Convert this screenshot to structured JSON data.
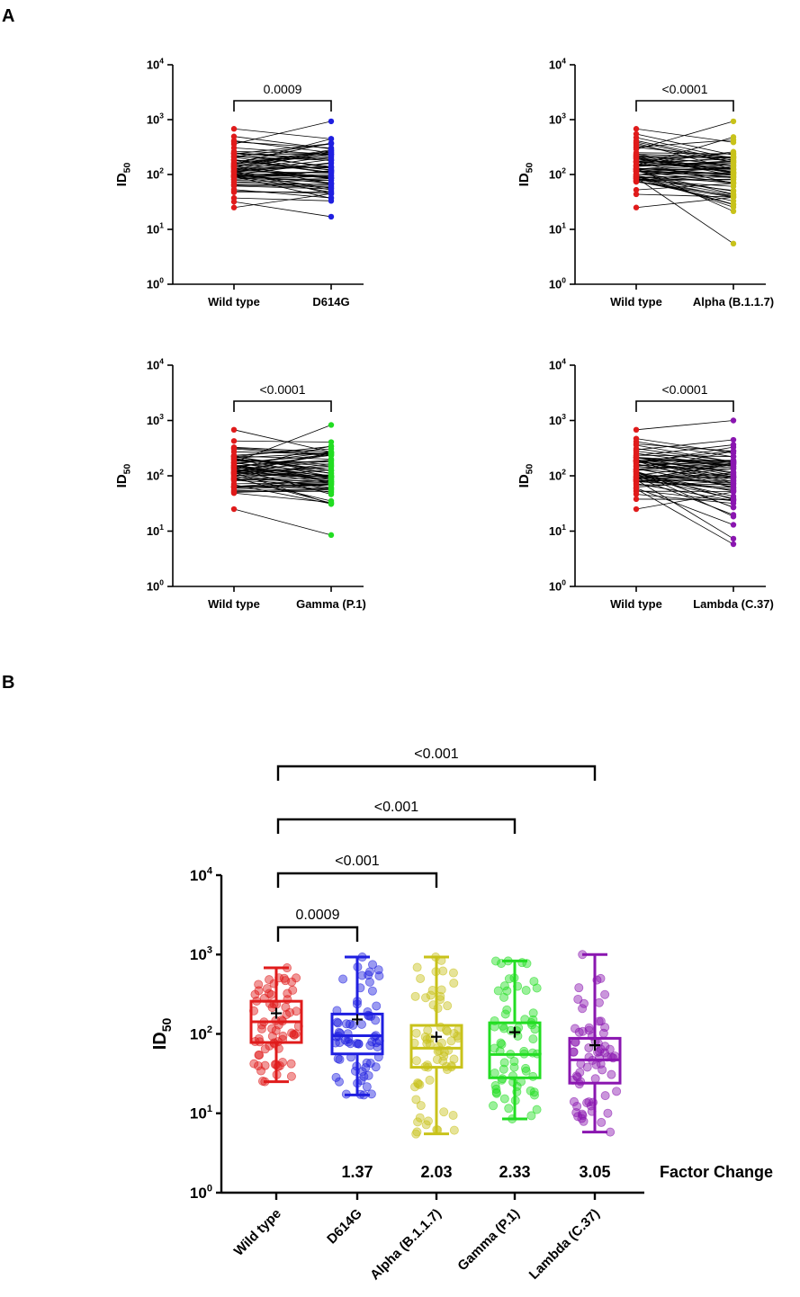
{
  "figure": {
    "panel_a_label": "A",
    "panel_b_label": "B"
  },
  "colors": {
    "wild_type": "#e01b1b",
    "d614g": "#1f1fe0",
    "alpha": "#c8c21a",
    "gamma": "#22dd22",
    "lambda": "#8a16b0",
    "pair_line": "#000000"
  },
  "chart_data": [
    {
      "panel": "A1",
      "type": "line",
      "subtype": "paired-dot",
      "ylabel_main": "ID",
      "ylabel_sub": "50",
      "y_scale": "log10",
      "ylim": [
        1,
        10000
      ],
      "y_ticks": [
        {
          "base": "10",
          "exp": "0"
        },
        {
          "base": "10",
          "exp": "1"
        },
        {
          "base": "10",
          "exp": "2"
        },
        {
          "base": "10",
          "exp": "3"
        },
        {
          "base": "10",
          "exp": "4"
        }
      ],
      "categories": [
        "Wild type",
        "D614G"
      ],
      "p_value": "0.0009",
      "series": [
        {
          "category": "Wild type",
          "color_key": "wild_type",
          "min": 25,
          "max": 680
        },
        {
          "category": "D614G",
          "color_key": "d614g",
          "min": 17,
          "max": 930
        }
      ],
      "pair_count": 70
    },
    {
      "panel": "A2",
      "type": "line",
      "subtype": "paired-dot",
      "ylabel_main": "ID",
      "ylabel_sub": "50",
      "y_scale": "log10",
      "ylim": [
        1,
        10000
      ],
      "y_ticks": [
        {
          "base": "10",
          "exp": "0"
        },
        {
          "base": "10",
          "exp": "1"
        },
        {
          "base": "10",
          "exp": "2"
        },
        {
          "base": "10",
          "exp": "3"
        },
        {
          "base": "10",
          "exp": "4"
        }
      ],
      "categories": [
        "Wild type",
        "Alpha (B.1.1.7)"
      ],
      "p_value": "<0.0001",
      "series": [
        {
          "category": "Wild type",
          "color_key": "wild_type",
          "min": 25,
          "max": 680
        },
        {
          "category": "Alpha (B.1.1.7)",
          "color_key": "alpha",
          "min": 5.5,
          "max": 930
        }
      ],
      "pair_count": 70
    },
    {
      "panel": "A3",
      "type": "line",
      "subtype": "paired-dot",
      "ylabel_main": "ID",
      "ylabel_sub": "50",
      "y_scale": "log10",
      "ylim": [
        1,
        10000
      ],
      "y_ticks": [
        {
          "base": "10",
          "exp": "0"
        },
        {
          "base": "10",
          "exp": "1"
        },
        {
          "base": "10",
          "exp": "2"
        },
        {
          "base": "10",
          "exp": "3"
        },
        {
          "base": "10",
          "exp": "4"
        }
      ],
      "categories": [
        "Wild type",
        "Gamma (P.1)"
      ],
      "p_value": "<0.0001",
      "series": [
        {
          "category": "Wild type",
          "color_key": "wild_type",
          "min": 25,
          "max": 680
        },
        {
          "category": "Gamma (P.1)",
          "color_key": "gamma",
          "min": 8.5,
          "max": 830
        }
      ],
      "pair_count": 70
    },
    {
      "panel": "A4",
      "type": "line",
      "subtype": "paired-dot",
      "ylabel_main": "ID",
      "ylabel_sub": "50",
      "y_scale": "log10",
      "ylim": [
        1,
        10000
      ],
      "y_ticks": [
        {
          "base": "10",
          "exp": "0"
        },
        {
          "base": "10",
          "exp": "1"
        },
        {
          "base": "10",
          "exp": "2"
        },
        {
          "base": "10",
          "exp": "3"
        },
        {
          "base": "10",
          "exp": "4"
        }
      ],
      "categories": [
        "Wild type",
        "Lambda (C.37)"
      ],
      "p_value": "<0.0001",
      "series": [
        {
          "category": "Wild type",
          "color_key": "wild_type",
          "min": 25,
          "max": 680
        },
        {
          "category": "Lambda (C.37)",
          "color_key": "lambda",
          "min": 5.8,
          "max": 1000
        }
      ],
      "pair_count": 70
    },
    {
      "panel": "B",
      "type": "scatter",
      "subtype": "box-and-points",
      "ylabel_main": "ID",
      "ylabel_sub": "50",
      "y_scale": "log10",
      "ylim": [
        1,
        10000
      ],
      "y_ticks": [
        {
          "base": "10",
          "exp": "0"
        },
        {
          "base": "10",
          "exp": "1"
        },
        {
          "base": "10",
          "exp": "2"
        },
        {
          "base": "10",
          "exp": "3"
        },
        {
          "base": "10",
          "exp": "4"
        }
      ],
      "categories": [
        "Wild type",
        "D614G",
        "Alpha (B.1.1.7)",
        "Gamma (P.1)",
        "Lambda (C.37)"
      ],
      "boxes": [
        {
          "category": "Wild type",
          "color_key": "wild_type",
          "min": 25,
          "q1": 78,
          "median": 142,
          "q3": 258,
          "max": 680,
          "mean": 182
        },
        {
          "category": "D614G",
          "color_key": "d614g",
          "min": 17,
          "q1": 56,
          "median": 95,
          "q3": 178,
          "max": 930,
          "mean": 152
        },
        {
          "category": "Alpha (B.1.1.7)",
          "color_key": "alpha",
          "min": 5.5,
          "q1": 38,
          "median": 66,
          "q3": 128,
          "max": 930,
          "mean": 92
        },
        {
          "category": "Gamma (P.1)",
          "color_key": "gamma",
          "min": 8.5,
          "q1": 28,
          "median": 55,
          "q3": 138,
          "max": 830,
          "mean": 105
        },
        {
          "category": "Lambda (C.37)",
          "color_key": "lambda",
          "min": 5.8,
          "q1": 24,
          "median": 47,
          "q3": 88,
          "max": 1000,
          "mean": 72
        }
      ],
      "factor_change": {
        "label": "Factor Change",
        "values": [
          {
            "category": "D614G",
            "value": "1.37"
          },
          {
            "category": "Alpha (B.1.1.7)",
            "value": "2.03"
          },
          {
            "category": "Gamma (P.1)",
            "value": "2.33"
          },
          {
            "category": "Lambda (C.37)",
            "value": "3.05"
          }
        ]
      },
      "comparisons": [
        {
          "from": "Wild type",
          "to": "D614G",
          "p_value": "0.0009"
        },
        {
          "from": "Wild type",
          "to": "Alpha (B.1.1.7)",
          "p_value": "<0.001"
        },
        {
          "from": "Wild type",
          "to": "Gamma (P.1)",
          "p_value": "<0.001"
        },
        {
          "from": "Wild type",
          "to": "Lambda (C.37)",
          "p_value": "<0.001"
        }
      ],
      "points_per_group": 70
    }
  ]
}
